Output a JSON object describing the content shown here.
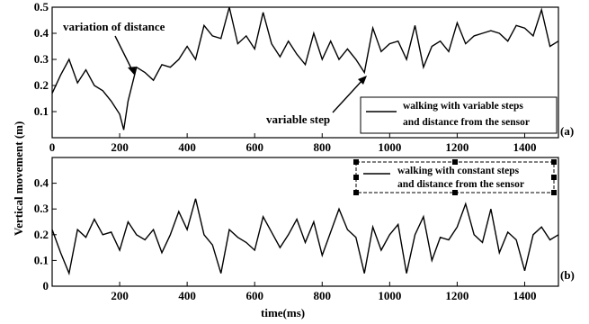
{
  "figure": {
    "ylabel": "Vertical movement (m)",
    "xlabel": "time(ms)"
  },
  "chart_data": [
    {
      "type": "line",
      "panel_label": "(a)",
      "xlim": [
        0,
        1500
      ],
      "ylim": [
        0,
        0.5
      ],
      "x_ticks": [
        0,
        200,
        400,
        600,
        800,
        1000,
        1200,
        1400
      ],
      "y_ticks": [
        0.1,
        0.2,
        0.3,
        0.4,
        0.5
      ],
      "annotations": [
        {
          "text": "variation of distance",
          "at": [
            195,
            0.27
          ]
        },
        {
          "text": "variable step",
          "at": [
            950,
            0.26
          ]
        }
      ],
      "legend": "bottom-right",
      "series": [
        {
          "name": "walking with variable steps and distance from the sensor",
          "x": [
            0,
            25,
            50,
            75,
            100,
            125,
            150,
            175,
            200,
            212,
            225,
            250,
            275,
            300,
            325,
            350,
            375,
            400,
            425,
            450,
            475,
            500,
            525,
            550,
            575,
            600,
            625,
            650,
            675,
            700,
            725,
            750,
            775,
            800,
            825,
            850,
            875,
            900,
            925,
            950,
            975,
            1000,
            1025,
            1050,
            1075,
            1100,
            1125,
            1150,
            1175,
            1200,
            1225,
            1250,
            1275,
            1300,
            1325,
            1350,
            1375,
            1400,
            1425,
            1450,
            1475,
            1500
          ],
          "y": [
            0.17,
            0.24,
            0.3,
            0.21,
            0.26,
            0.2,
            0.18,
            0.14,
            0.09,
            0.03,
            0.14,
            0.27,
            0.25,
            0.22,
            0.28,
            0.27,
            0.3,
            0.35,
            0.3,
            0.43,
            0.39,
            0.38,
            0.5,
            0.36,
            0.39,
            0.34,
            0.48,
            0.36,
            0.31,
            0.37,
            0.32,
            0.28,
            0.4,
            0.3,
            0.37,
            0.3,
            0.34,
            0.3,
            0.25,
            0.42,
            0.33,
            0.36,
            0.37,
            0.3,
            0.43,
            0.27,
            0.35,
            0.37,
            0.33,
            0.44,
            0.36,
            0.39,
            0.4,
            0.41,
            0.4,
            0.37,
            0.43,
            0.42,
            0.39,
            0.49,
            0.35,
            0.37
          ]
        }
      ]
    },
    {
      "type": "line",
      "panel_label": "(b)",
      "xlim": [
        0,
        1500
      ],
      "ylim": [
        0,
        0.5
      ],
      "x_ticks": [
        200,
        400,
        600,
        800,
        1000,
        1200,
        1400
      ],
      "y_ticks": [
        0,
        0.1,
        0.2,
        0.3,
        0.4
      ],
      "legend": "top-right",
      "series": [
        {
          "name": "walking with constant steps and distance from the sensor",
          "x": [
            0,
            25,
            50,
            75,
            100,
            125,
            150,
            175,
            200,
            225,
            250,
            275,
            300,
            325,
            350,
            375,
            400,
            425,
            450,
            475,
            500,
            525,
            550,
            575,
            600,
            625,
            650,
            675,
            700,
            725,
            750,
            775,
            800,
            825,
            850,
            875,
            900,
            925,
            950,
            975,
            1000,
            1025,
            1050,
            1075,
            1100,
            1125,
            1150,
            1175,
            1200,
            1225,
            1250,
            1275,
            1300,
            1325,
            1350,
            1375,
            1400,
            1425,
            1450,
            1475,
            1500
          ],
          "y": [
            0.22,
            0.13,
            0.05,
            0.22,
            0.19,
            0.26,
            0.2,
            0.21,
            0.14,
            0.25,
            0.2,
            0.18,
            0.22,
            0.13,
            0.2,
            0.29,
            0.22,
            0.34,
            0.2,
            0.16,
            0.05,
            0.22,
            0.19,
            0.17,
            0.14,
            0.27,
            0.21,
            0.15,
            0.2,
            0.26,
            0.17,
            0.25,
            0.12,
            0.21,
            0.3,
            0.22,
            0.19,
            0.05,
            0.23,
            0.14,
            0.2,
            0.24,
            0.05,
            0.2,
            0.27,
            0.1,
            0.19,
            0.18,
            0.23,
            0.32,
            0.2,
            0.17,
            0.3,
            0.13,
            0.21,
            0.18,
            0.06,
            0.2,
            0.23,
            0.18,
            0.2
          ]
        }
      ]
    }
  ]
}
